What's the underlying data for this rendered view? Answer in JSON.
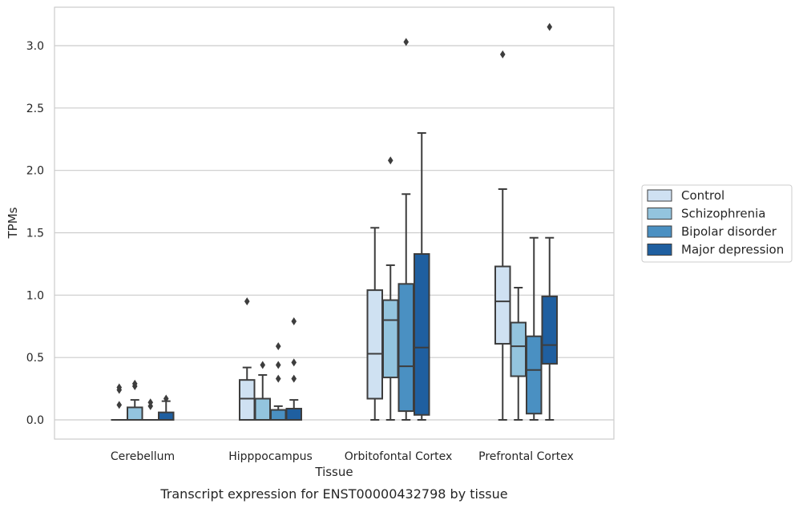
{
  "caption": "Transcript expression for ENST00000432798 by tissue",
  "chart_data": {
    "type": "box",
    "xlabel": "Tissue",
    "ylabel": "TPMs",
    "ylim": [
      -0.15,
      3.3
    ],
    "y_ticks": [
      "0.0",
      "0.5",
      "1.0",
      "1.5",
      "2.0",
      "2.5",
      "3.0"
    ],
    "grid": "horizontal",
    "legend_position": "right",
    "categories": [
      "Cerebellum",
      "Hipppocampus",
      "Orbitofontal Cortex",
      "Prefrontal Cortex"
    ],
    "series": [
      {
        "name": "Control",
        "color": "#cfe1f2",
        "boxes": [
          {
            "whislo": 0,
            "q1": 0,
            "med": 0,
            "q3": 0,
            "whishi": 0,
            "fliers": [
              0.12,
              0.24,
              0.26
            ]
          },
          {
            "whislo": 0,
            "q1": 0,
            "med": 0.17,
            "q3": 0.32,
            "whishi": 0.42,
            "fliers": [
              0.95
            ]
          },
          {
            "whislo": 0,
            "q1": 0.17,
            "med": 0.53,
            "q3": 1.04,
            "whishi": 1.54,
            "fliers": []
          },
          {
            "whislo": 0,
            "q1": 0.61,
            "med": 0.95,
            "q3": 1.23,
            "whishi": 1.85,
            "fliers": [
              2.93
            ]
          }
        ]
      },
      {
        "name": "Schizophrenia",
        "color": "#93c4de",
        "boxes": [
          {
            "whislo": 0,
            "q1": 0,
            "med": 0,
            "q3": 0.1,
            "whishi": 0.16,
            "fliers": [
              0.27,
              0.29
            ]
          },
          {
            "whislo": 0,
            "q1": 0,
            "med": 0,
            "q3": 0.17,
            "whishi": 0.36,
            "fliers": [
              0.44
            ]
          },
          {
            "whislo": 0,
            "q1": 0.34,
            "med": 0.8,
            "q3": 0.96,
            "whishi": 1.24,
            "fliers": [
              2.08
            ]
          },
          {
            "whislo": 0,
            "q1": 0.35,
            "med": 0.59,
            "q3": 0.78,
            "whishi": 1.06,
            "fliers": []
          }
        ]
      },
      {
        "name": "Bipolar disorder",
        "color": "#4a90c2",
        "boxes": [
          {
            "whislo": 0,
            "q1": 0,
            "med": 0,
            "q3": 0,
            "whishi": 0,
            "fliers": [
              0.11,
              0.14
            ]
          },
          {
            "whislo": 0,
            "q1": 0,
            "med": 0,
            "q3": 0.08,
            "whishi": 0.11,
            "fliers": [
              0.33,
              0.44,
              0.59
            ]
          },
          {
            "whislo": 0,
            "q1": 0.07,
            "med": 0.43,
            "q3": 1.09,
            "whishi": 1.81,
            "fliers": [
              3.03
            ]
          },
          {
            "whislo": 0,
            "q1": 0.05,
            "med": 0.4,
            "q3": 0.67,
            "whishi": 1.46,
            "fliers": []
          }
        ]
      },
      {
        "name": "Major depression",
        "color": "#1f5fa0",
        "boxes": [
          {
            "whislo": 0,
            "q1": 0,
            "med": 0,
            "q3": 0.06,
            "whishi": 0.15,
            "fliers": [
              0.17
            ]
          },
          {
            "whislo": 0,
            "q1": 0,
            "med": 0,
            "q3": 0.09,
            "whishi": 0.16,
            "fliers": [
              0.33,
              0.46,
              0.79
            ]
          },
          {
            "whislo": 0,
            "q1": 0.04,
            "med": 0.58,
            "q3": 1.33,
            "whishi": 2.3,
            "fliers": []
          },
          {
            "whislo": 0,
            "q1": 0.45,
            "med": 0.6,
            "q3": 0.99,
            "whishi": 1.46,
            "fliers": [
              3.15
            ]
          }
        ]
      }
    ]
  }
}
